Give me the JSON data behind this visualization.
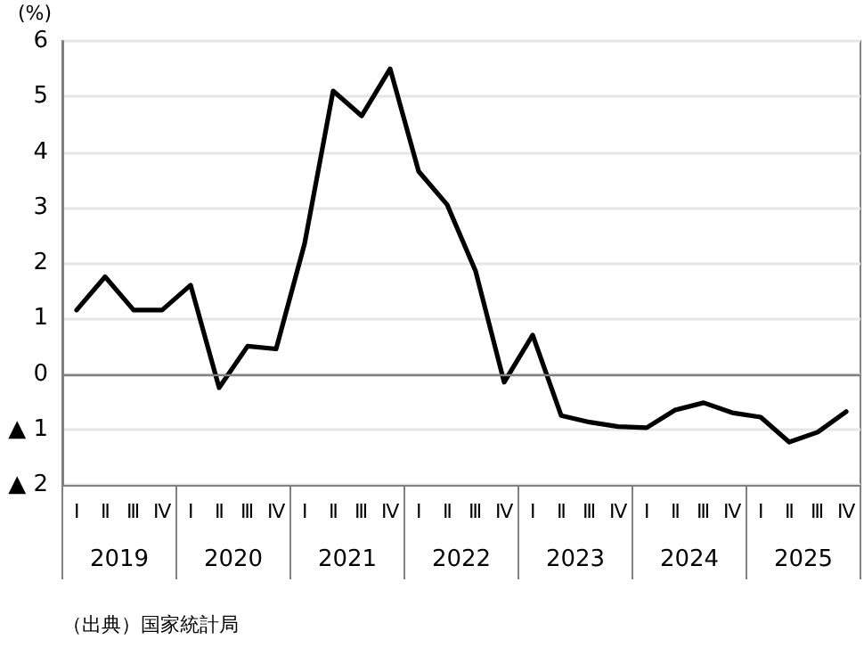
{
  "chart_data": {
    "type": "line",
    "ylabel": "(%)",
    "categories": [
      "Ⅰ",
      "Ⅱ",
      "Ⅲ",
      "Ⅳ",
      "Ⅰ",
      "Ⅱ",
      "Ⅲ",
      "Ⅳ",
      "Ⅰ",
      "Ⅱ",
      "Ⅲ",
      "Ⅳ",
      "Ⅰ",
      "Ⅱ",
      "Ⅲ",
      "Ⅳ",
      "Ⅰ",
      "Ⅱ",
      "Ⅲ",
      "Ⅳ",
      "Ⅰ",
      "Ⅱ",
      "Ⅲ",
      "Ⅳ",
      "Ⅰ",
      "Ⅱ",
      "Ⅲ",
      "Ⅳ"
    ],
    "series": [
      {
        "color": "#000000",
        "values": [
          1.15,
          1.75,
          1.15,
          1.15,
          1.6,
          -0.25,
          0.5,
          0.45,
          2.35,
          5.1,
          4.65,
          5.5,
          3.65,
          3.05,
          1.85,
          -0.15,
          0.7,
          -0.75,
          -0.87,
          -0.95,
          -0.97,
          -0.65,
          -0.52,
          -0.7,
          -0.78,
          -1.23,
          -1.05,
          -0.68
        ]
      }
    ],
    "ylim": [
      -2,
      6
    ],
    "yticks": [
      {
        "value": -2,
        "label": "▲ 2"
      },
      {
        "value": -1,
        "label": "▲ 1"
      },
      0,
      1,
      2,
      3,
      4,
      5,
      6
    ],
    "ref_lines": [
      {
        "axis": "y",
        "value": 0,
        "color": "#808080"
      }
    ],
    "grid": "y",
    "marker": "none",
    "line_style": "solid",
    "annotations": [
      "2019",
      "2020",
      "2021",
      "2022",
      "2023",
      "2024",
      "2025",
      "（出典）国家統計局"
    ]
  }
}
